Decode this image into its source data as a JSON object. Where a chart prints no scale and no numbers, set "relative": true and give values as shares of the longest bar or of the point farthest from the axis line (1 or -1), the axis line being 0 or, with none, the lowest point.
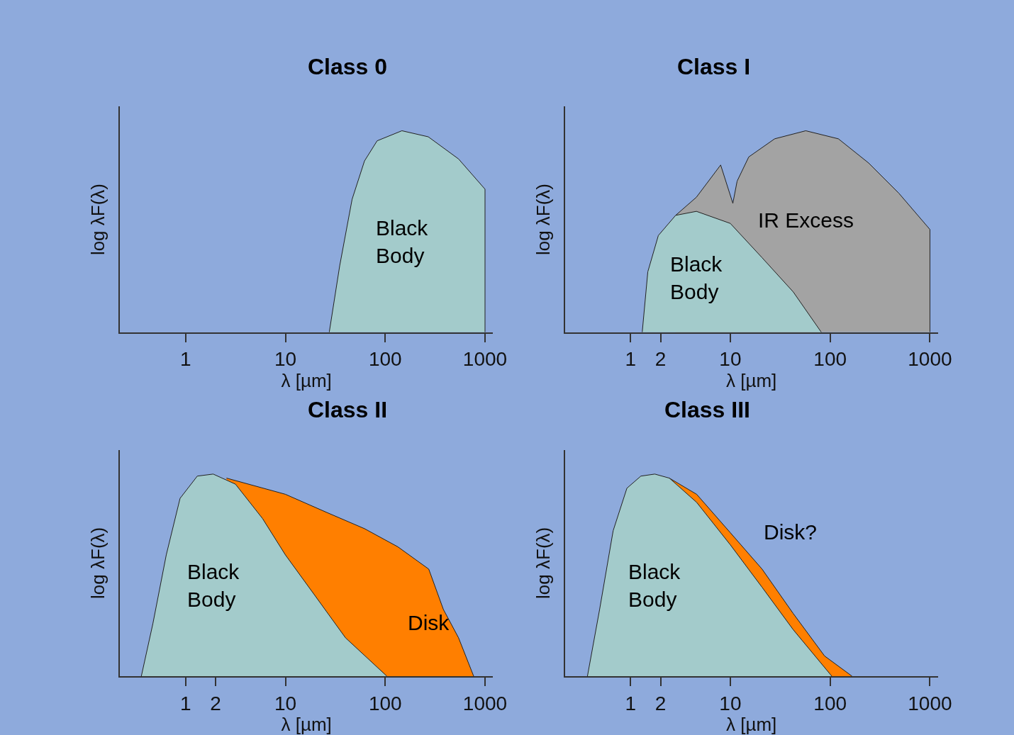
{
  "chart_data": [
    {
      "type": "area",
      "title": "Class 0",
      "xlabel": "λ [µm]",
      "ylabel": "log λF(λ)",
      "relative": true,
      "log": "x",
      "xlim": [
        0.22,
        1200
      ],
      "xticks": [
        1,
        10,
        100,
        1000
      ],
      "grid": false,
      "series": [
        {
          "color": "#a3cbcb",
          "x": [
            27.5,
            35,
            46.6,
            62,
            83,
            147,
            270,
            543,
            1000,
            1000
          ],
          "values": [
            0,
            0.33,
            0.66,
            0.85,
            0.95,
            1,
            0.97,
            0.86,
            0.71,
            0
          ]
        }
      ],
      "annotations": [
        "Black\nBody"
      ]
    },
    {
      "type": "area",
      "title": "Class I",
      "xlabel": "λ [µm]",
      "ylabel": "log λF(λ)",
      "relative": true,
      "log": "x",
      "xlim": [
        0.22,
        1200
      ],
      "xticks": [
        1,
        2,
        10,
        100,
        1000
      ],
      "grid": false,
      "series": [
        {
          "color": "#a3a3a3",
          "x": [
            2.83,
            4.57,
            8.0,
            10.6,
            11.7,
            15.3,
            27.8,
            57,
            121,
            243,
            488,
            1000,
            1000
          ],
          "values": [
            0.58,
            0.67,
            0.83,
            0.64,
            0.75,
            0.87,
            0.96,
            1,
            0.96,
            0.84,
            0.69,
            0.51,
            0
          ]
        },
        {
          "color": "#a3cbcb",
          "x": [
            1.31,
            1.49,
            1.9,
            2.83,
            4.57,
            10,
            20.8,
            42.7,
            81.6
          ],
          "values": [
            0,
            0.3,
            0.48,
            0.58,
            0.6,
            0.54,
            0.37,
            0.2,
            0
          ]
        }
      ],
      "annotations": [
        "IR Excess",
        "Black\nBody"
      ]
    },
    {
      "type": "area",
      "title": "Class II",
      "xlabel": "λ [µm]",
      "ylabel": "log λF(λ)",
      "relative": true,
      "log": "x",
      "xlim": [
        0.22,
        1200
      ],
      "xticks": [
        1,
        2,
        10,
        100,
        1000
      ],
      "grid": false,
      "series": [
        {
          "color": "#ff7f00",
          "x": [
            2.57,
            10,
            26,
            62,
            134,
            273,
            383,
            543,
            770
          ],
          "values": [
            0.98,
            0.9,
            0.81,
            0.73,
            0.64,
            0.53,
            0.33,
            0.19,
            0
          ]
        },
        {
          "color": "#a3cbcb",
          "x": [
            0.36,
            0.47,
            0.64,
            0.88,
            1.31,
            1.89,
            3.16,
            5.9,
            10,
            19.7,
            40,
            104
          ],
          "values": [
            0,
            0.26,
            0.6,
            0.88,
            0.99,
            1,
            0.95,
            0.78,
            0.6,
            0.4,
            0.19,
            0
          ]
        }
      ],
      "annotations": [
        "Disk",
        "Black\nBody"
      ]
    },
    {
      "type": "area",
      "title": "Class III",
      "xlabel": "λ [µm]",
      "ylabel": "log λF(λ)",
      "relative": true,
      "log": "x",
      "xlim": [
        0.22,
        1200
      ],
      "xticks": [
        1,
        2,
        10,
        100,
        1000
      ],
      "grid": false,
      "series": [
        {
          "color": "#ff7f00",
          "x": [
            2.45,
            4.6,
            10,
            20.8,
            42.7,
            88,
            166
          ],
          "values": [
            0.98,
            0.9,
            0.71,
            0.53,
            0.31,
            0.1,
            0
          ]
        },
        {
          "color": "#a3cbcb",
          "x": [
            0.37,
            0.49,
            0.67,
            0.92,
            1.27,
            1.75,
            2.45,
            4.6,
            10,
            20.8,
            42.7,
            104
          ],
          "values": [
            0,
            0.33,
            0.72,
            0.93,
            0.99,
            1,
            0.98,
            0.86,
            0.65,
            0.44,
            0.23,
            0
          ]
        }
      ],
      "annotations": [
        "Disk?",
        "Black\nBody"
      ]
    }
  ]
}
